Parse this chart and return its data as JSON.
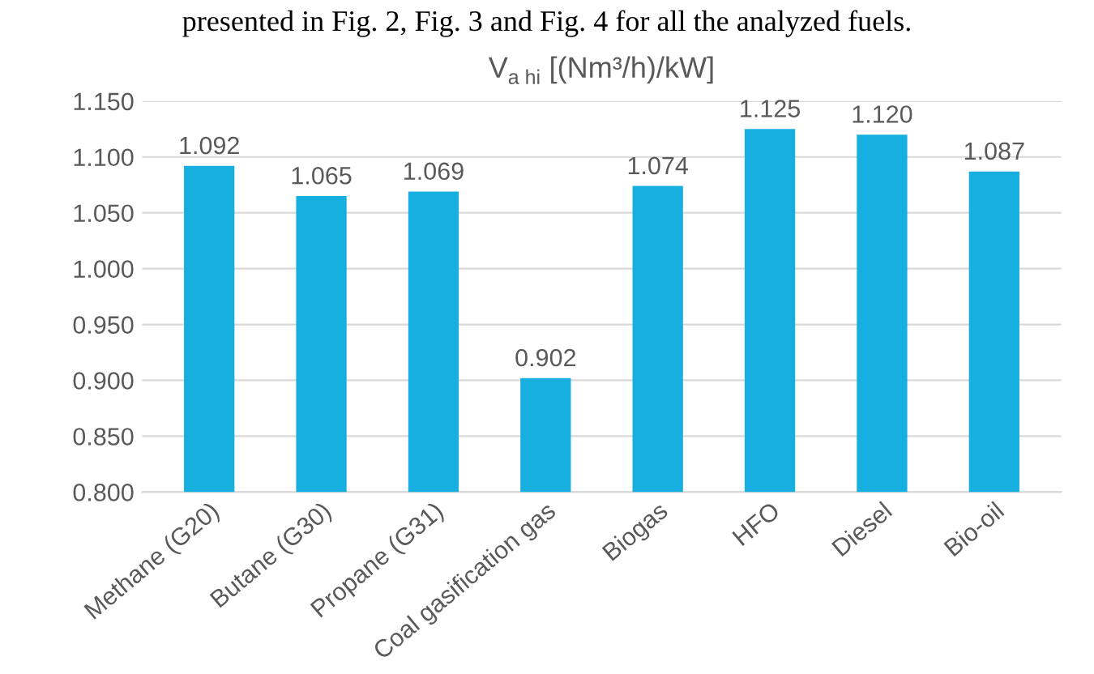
{
  "chart_data": {
    "type": "bar",
    "title": "V$_{a hi}$ [(Nm³/h)/kW]",
    "annotations": [
      "presented in Fig. 2, Fig. 3 and Fig. 4 for all the analyzed fuels."
    ],
    "categories": [
      "Methane (G20)",
      "Butane (G30)",
      "Propane (G31)",
      "Coal gasification gas",
      "Biogas",
      "HFO",
      "Diesel",
      "Bio-oil"
    ],
    "values": [
      1.092,
      1.065,
      1.069,
      0.902,
      1.074,
      1.125,
      1.12,
      1.087
    ],
    "value_labels": [
      "1.092",
      "1.065",
      "1.069",
      "0.902",
      "1.074",
      "1.125",
      "1.120",
      "1.087"
    ],
    "color": "#17afe0",
    "ylim": [
      0.8,
      1.15
    ],
    "yticks": [
      {
        "value": 0.8,
        "label": "0.800"
      },
      {
        "value": 0.85,
        "label": "0.850"
      },
      {
        "value": 0.9,
        "label": "0.900"
      },
      {
        "value": 0.95,
        "label": "0.950"
      },
      {
        "value": 1.0,
        "label": "1.000"
      },
      {
        "value": 1.05,
        "label": "1.050"
      },
      {
        "value": 1.1,
        "label": "1.100"
      },
      {
        "value": 1.15,
        "label": "1.150"
      }
    ],
    "grid": "y"
  }
}
